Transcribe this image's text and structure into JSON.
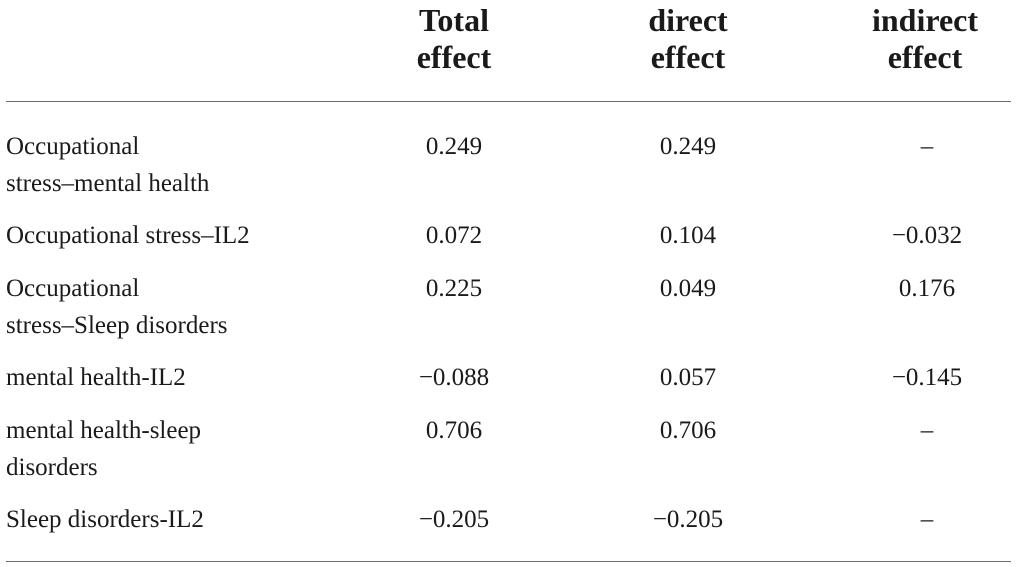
{
  "table": {
    "columns": [
      {
        "line1": "Total",
        "line2": "effect"
      },
      {
        "line1": "direct",
        "line2": "effect"
      },
      {
        "line1": "indirect",
        "line2": "effect"
      }
    ],
    "rows": [
      {
        "label": [
          "Occupational",
          "stress–mental health"
        ],
        "total": "0.249",
        "direct": "0.249",
        "indirect": "–"
      },
      {
        "label": [
          "Occupational stress–IL2"
        ],
        "total": "0.072",
        "direct": "0.104",
        "indirect": "−0.032"
      },
      {
        "label": [
          "Occupational",
          "stress–Sleep disorders"
        ],
        "total": "0.225",
        "direct": "0.049",
        "indirect": "0.176"
      },
      {
        "label": [
          "mental health-IL2"
        ],
        "total": "−0.088",
        "direct": "0.057",
        "indirect": "−0.145"
      },
      {
        "label": [
          "mental health-sleep",
          "disorders"
        ],
        "total": "0.706",
        "direct": "0.706",
        "indirect": "–"
      },
      {
        "label": [
          "Sleep disorders-IL2"
        ],
        "total": "−0.205",
        "direct": "−0.205",
        "indirect": "–"
      }
    ]
  }
}
